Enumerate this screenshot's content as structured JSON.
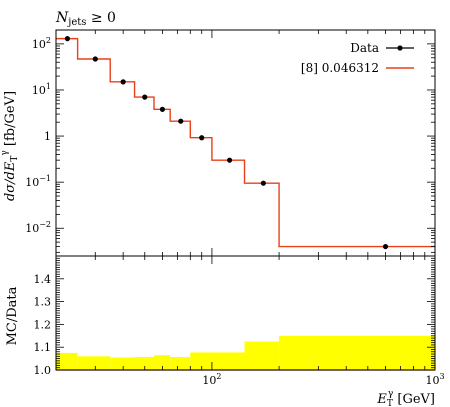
{
  "chart_data": {
    "type": "line",
    "panel_label_main": "N",
    "panel_label_sub": "jets",
    "panel_label_rest": " ≥ 0",
    "ylabel_main": "dσ/dE",
    "ylabel_sub": "T",
    "ylabel_sup": "γ",
    "ylabel_units": " [fb/GeV]",
    "ylabel_ratio": "MC/Data",
    "xlabel_main": "E",
    "xlabel_sub": "T",
    "xlabel_sup": "γ",
    "xlabel_units": " [GeV]",
    "xscale": "log",
    "yscale": "log",
    "xlim": [
      20,
      1000
    ],
    "ylim": [
      0.0025,
      200
    ],
    "ratio_ylim": [
      1.0,
      1.5
    ],
    "x_tick_labels": [
      {
        "value": 100,
        "base": "10",
        "exp": "2"
      },
      {
        "value": 1000,
        "base": "10",
        "exp": "3"
      }
    ],
    "y_tick_labels": [
      {
        "value": 100,
        "base": "10",
        "exp": "2"
      },
      {
        "value": 10,
        "base": "10",
        "exp": "1"
      },
      {
        "value": 1,
        "base": "1",
        "exp": ""
      },
      {
        "value": 0.1,
        "base": "10",
        "exp": "−1"
      },
      {
        "value": 0.01,
        "base": "10",
        "exp": "−2"
      }
    ],
    "ratio_tick_labels": [
      "1.0",
      "1.1",
      "1.2",
      "1.3",
      "1.4"
    ],
    "bin_edges": [
      20,
      25,
      35,
      45,
      55,
      65,
      80,
      100,
      140,
      200,
      1000
    ],
    "data_series": {
      "name": "Data",
      "color": "#000000",
      "x": [
        22.5,
        30,
        40,
        50,
        60,
        72.5,
        90,
        120,
        170,
        600
      ],
      "y": [
        130,
        47,
        15,
        7,
        3.8,
        2.1,
        0.92,
        0.3,
        0.095,
        0.004
      ]
    },
    "mc_series": {
      "name": "[8] 0.046312",
      "color": "#e8411a",
      "values": [
        130,
        47,
        15,
        7,
        3.8,
        2.1,
        0.92,
        0.3,
        0.095,
        0.004
      ]
    },
    "ratio_band": {
      "color": "#ffff00",
      "upper": [
        1.075,
        1.06,
        1.055,
        1.057,
        1.065,
        1.057,
        1.077,
        1.077,
        1.125,
        1.15
      ]
    },
    "ratio_line_value": 1.0
  }
}
